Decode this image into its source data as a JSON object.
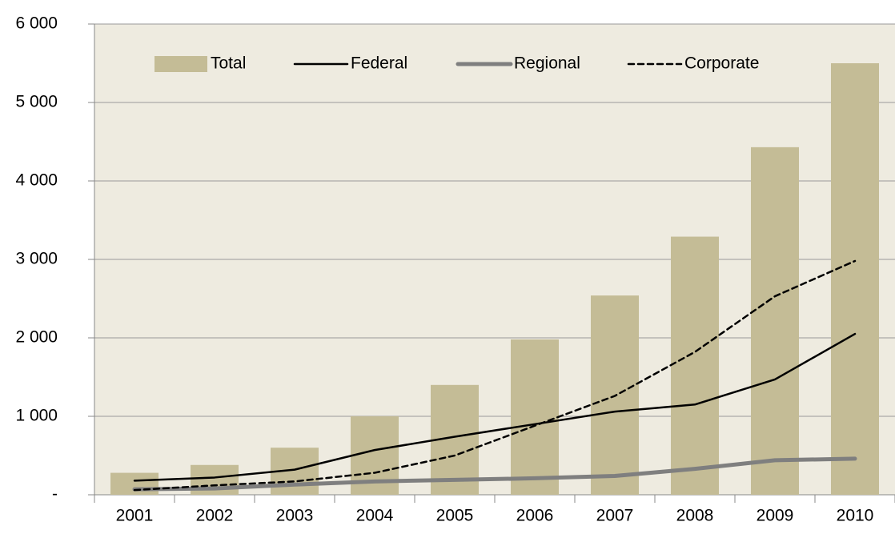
{
  "chart_data": {
    "type": "bar",
    "categories": [
      "2001",
      "2002",
      "2003",
      "2004",
      "2005",
      "2006",
      "2007",
      "2008",
      "2009",
      "2010"
    ],
    "series": [
      {
        "name": "Total",
        "type": "bar",
        "color": "#c4bc96",
        "values": [
          280,
          380,
          600,
          1000,
          1400,
          1980,
          2540,
          3290,
          4430,
          5500
        ]
      },
      {
        "name": "Federal",
        "type": "line",
        "color": "#000000",
        "width": 2.5,
        "dashed": false,
        "values": [
          180,
          220,
          320,
          570,
          740,
          900,
          1060,
          1150,
          1470,
          2050
        ]
      },
      {
        "name": "Regional",
        "type": "line",
        "color": "#7f7f7f",
        "width": 5,
        "dashed": false,
        "values": [
          70,
          80,
          130,
          170,
          190,
          210,
          240,
          330,
          440,
          460
        ]
      },
      {
        "name": "Corporate",
        "type": "line",
        "color": "#000000",
        "width": 2.5,
        "dashed": true,
        "values": [
          60,
          120,
          170,
          280,
          500,
          880,
          1260,
          1820,
          2530,
          2980
        ]
      }
    ],
    "ylim": [
      0,
      6000
    ],
    "yticks": [
      {
        "value": 0,
        "label": "-"
      },
      {
        "value": 1000,
        "label": "1 000"
      },
      {
        "value": 2000,
        "label": "2 000"
      },
      {
        "value": 3000,
        "label": "3 000"
      },
      {
        "value": 4000,
        "label": "4 000"
      },
      {
        "value": 5000,
        "label": "5 000"
      },
      {
        "value": 6000,
        "label": "6 000"
      }
    ],
    "grid": true,
    "legend": "top"
  }
}
